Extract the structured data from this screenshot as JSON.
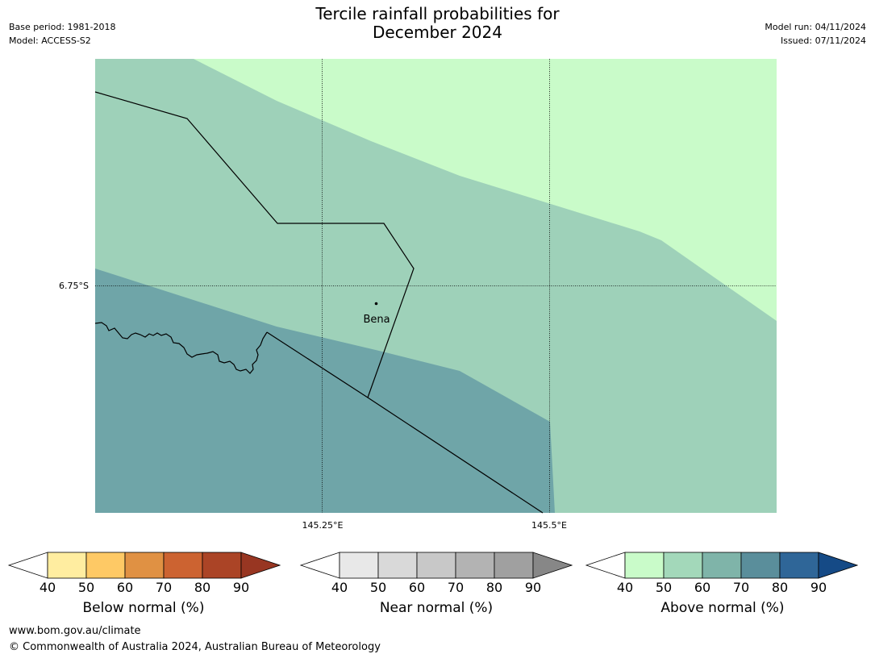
{
  "title_line1": "Tercile rainfall probabilities for",
  "title_line2": "December 2024",
  "meta_left": [
    "Base period: 1981-2018",
    "Model: ACCESS-S2"
  ],
  "meta_right": [
    "Model run: 04/11/2024",
    "Issued: 07/11/2024"
  ],
  "map": {
    "lat_label": "6.75°S",
    "lon_labels": [
      "145.25°E",
      "145.5°E"
    ],
    "place": "Bena",
    "colors": {
      "above_40_50": "#c9fbc9",
      "above_50_60": "#9ed1b9",
      "above_60_70": "#6fa5a8"
    }
  },
  "colorbars": [
    {
      "title": "Below normal (%)",
      "ticks": [
        "40",
        "50",
        "60",
        "70",
        "80",
        "90"
      ],
      "colors": [
        "#ffeda0",
        "#fec965",
        "#e09143",
        "#cc6331",
        "#ab4426"
      ],
      "arrow": "#983622"
    },
    {
      "title": "Near normal (%)",
      "ticks": [
        "40",
        "50",
        "60",
        "70",
        "80",
        "90"
      ],
      "colors": [
        "#e8e8e8",
        "#d9d9d9",
        "#c8c8c8",
        "#b3b3b3",
        "#a0a0a0"
      ],
      "arrow": "#878787"
    },
    {
      "title": "Above normal (%)",
      "ticks": [
        "40",
        "50",
        "60",
        "70",
        "80",
        "90"
      ],
      "colors": [
        "#c9fbc9",
        "#a3d8ba",
        "#7fb4a9",
        "#5a8e9b",
        "#2f6698"
      ],
      "arrow": "#154a86"
    }
  ],
  "footer": [
    "www.bom.gov.au/climate",
    "© Commonwealth of Australia 2024, Australian Bureau of Meteorology"
  ]
}
